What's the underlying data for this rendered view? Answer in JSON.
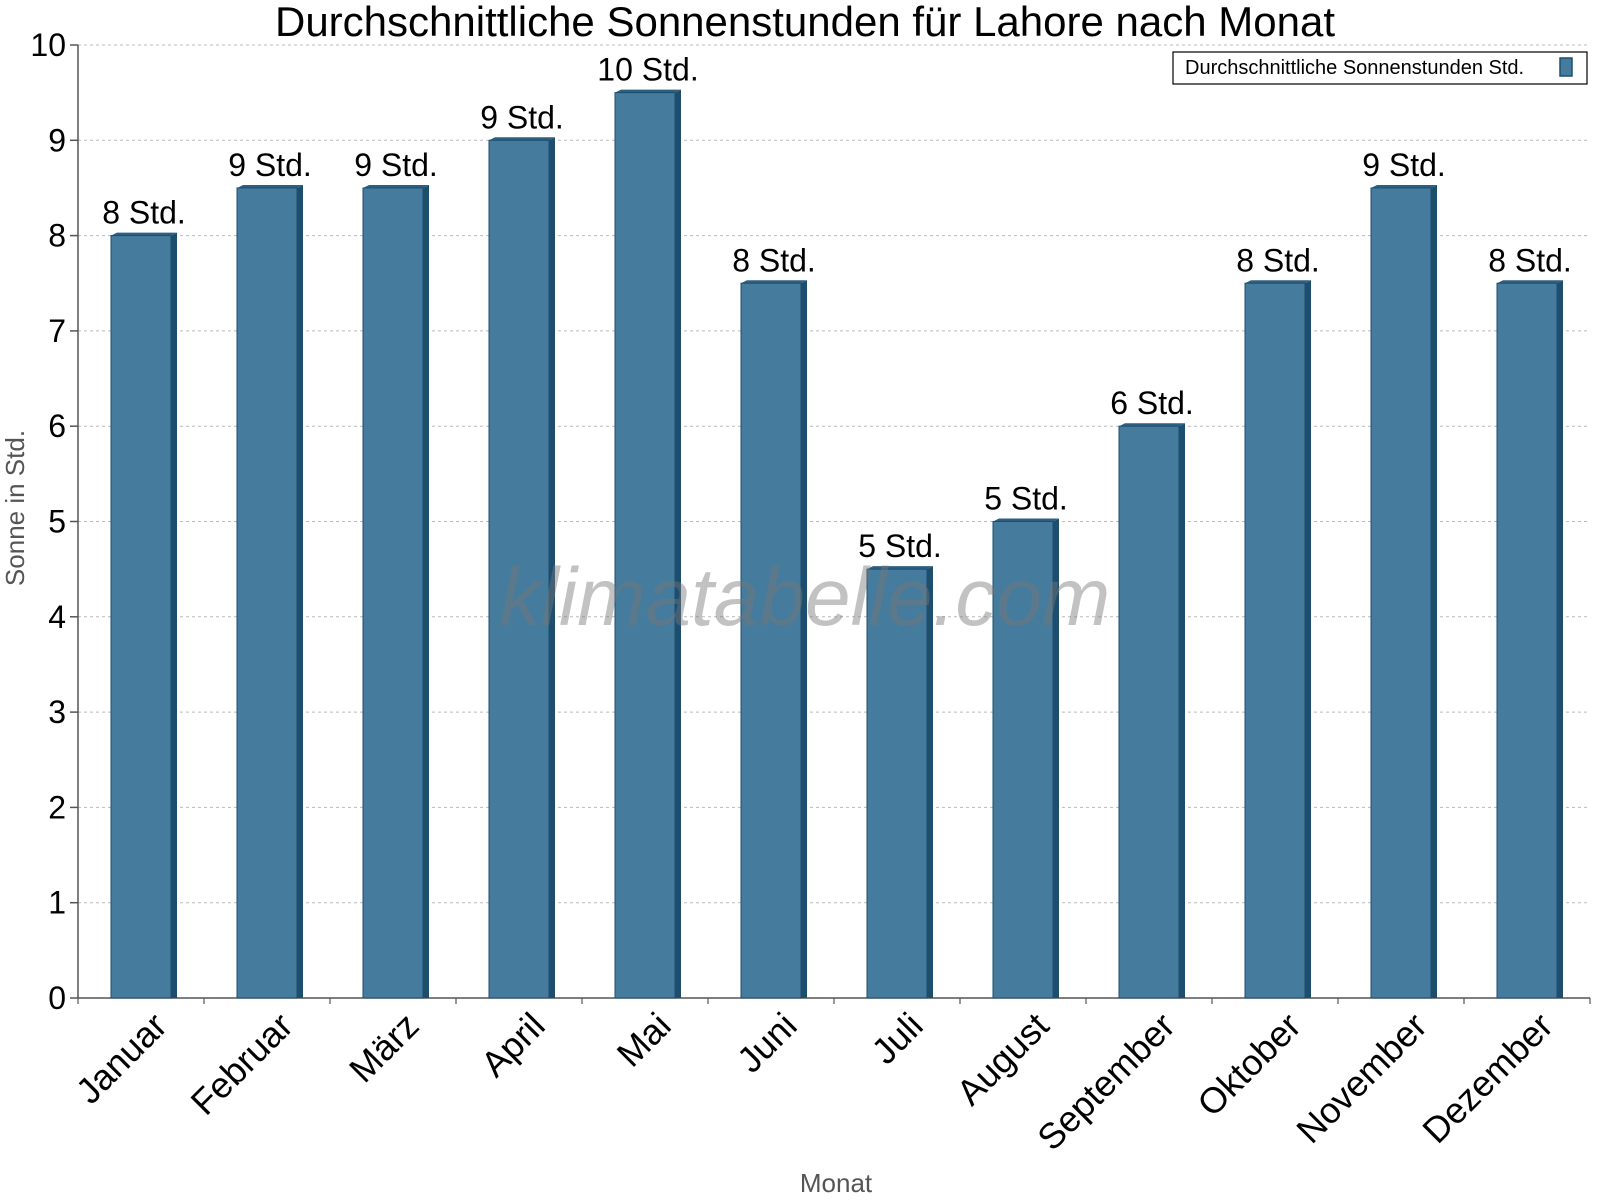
{
  "chart_data": {
    "type": "bar",
    "title": "Durchschnittliche Sonnenstunden für Lahore nach Monat",
    "xlabel": "Monat",
    "ylabel": "Sonne in Std.",
    "ylim": [
      0,
      10
    ],
    "yticks": [
      "0",
      "1",
      "2",
      "3",
      "4",
      "5",
      "6",
      "7",
      "8",
      "9",
      "10"
    ],
    "grid": true,
    "legend_position": "top-right",
    "categories": [
      "Januar",
      "Februar",
      "März",
      "April",
      "Mai",
      "Juni",
      "Juli",
      "August",
      "September",
      "Oktober",
      "November",
      "Dezember"
    ],
    "series": [
      {
        "name": "Durchschnittliche Sonnenstunden Std.",
        "values": [
          8,
          8.5,
          8.5,
          9,
          9.5,
          7.5,
          4.5,
          5,
          6,
          7.5,
          8.5,
          7.5
        ],
        "labels": [
          "8 Std.",
          "9 Std.",
          "9 Std.",
          "9 Std.",
          "10 Std.",
          "8 Std.",
          "5 Std.",
          "5 Std.",
          "6 Std.",
          "8 Std.",
          "9 Std.",
          "8 Std."
        ]
      }
    ],
    "watermark": "klimatabelle.com"
  },
  "colors": {
    "bar_face": "#457b9d",
    "bar_side": "#1d4e6e",
    "bar_top": "#2e5f80",
    "grid": "#bbbbbb",
    "axis": "#555555"
  }
}
